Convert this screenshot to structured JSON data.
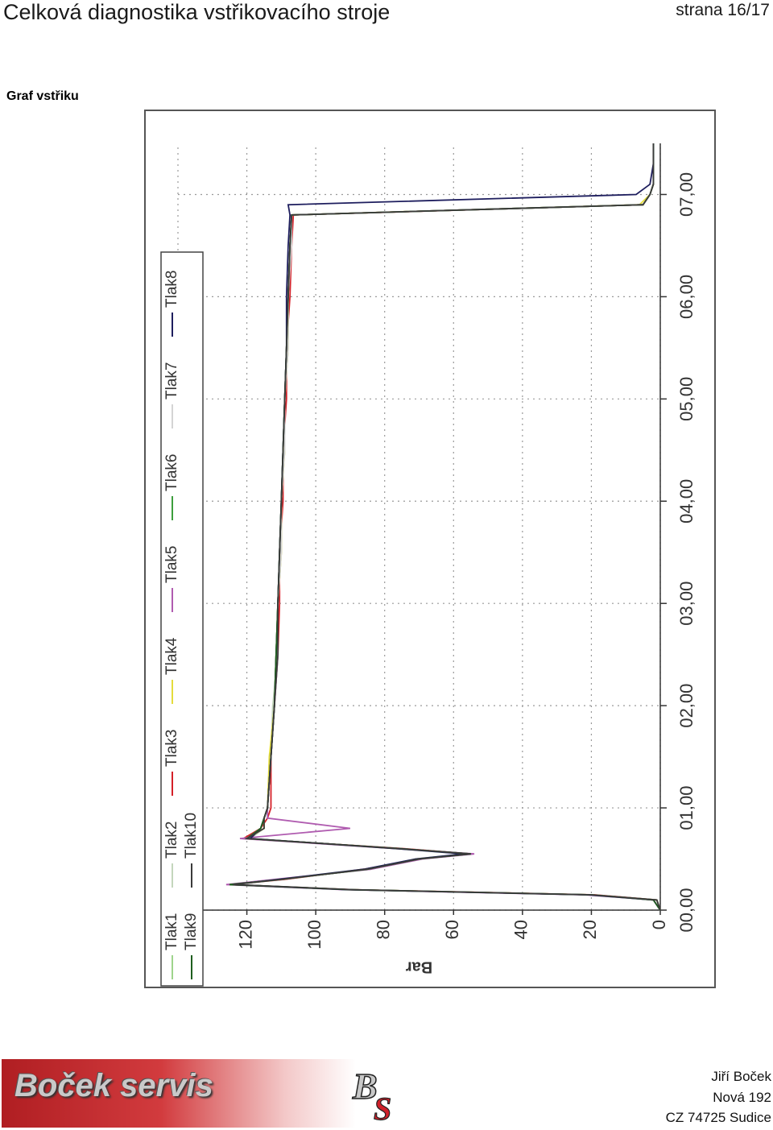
{
  "header": {
    "title": "Celková diagnostika vstřikovacího stroje",
    "page": "strana 16/17"
  },
  "section_title": "Graf vstřiku",
  "chart_data": {
    "type": "line",
    "ylabel": "Bar",
    "x": [
      0,
      0.1,
      0.15,
      0.2,
      0.25,
      0.3,
      0.4,
      0.5,
      0.55,
      0.6,
      0.7,
      0.8,
      0.9,
      1,
      1.5,
      2,
      2.5,
      3,
      3.5,
      4,
      4.5,
      5,
      5.5,
      6,
      6.5,
      6.8,
      6.9,
      7,
      7.1,
      7.3,
      7.5
    ],
    "xlim": [
      0,
      7.5
    ],
    "xticks": [
      {
        "value": 0,
        "label": "00,00"
      },
      {
        "value": 1,
        "label": "01,00"
      },
      {
        "value": 2,
        "label": "02,00"
      },
      {
        "value": 3,
        "label": "03,00"
      },
      {
        "value": 4,
        "label": "04,00"
      },
      {
        "value": 5,
        "label": "05,00"
      },
      {
        "value": 6,
        "label": "06,00"
      },
      {
        "value": 7,
        "label": "07,00"
      }
    ],
    "ylim": [
      0,
      140
    ],
    "yticks": [
      0,
      20,
      40,
      60,
      80,
      100,
      120,
      140
    ],
    "grid": true,
    "series": [
      {
        "name": "Tlak1",
        "color": "#9ed48c",
        "values": [
          0,
          2,
          20,
          90,
          125,
          110,
          85,
          70,
          55,
          75,
          120,
          116,
          115,
          114,
          113,
          112,
          111.5,
          111,
          110.5,
          110,
          109.5,
          109,
          108.5,
          108,
          107.5,
          107,
          5,
          3,
          2,
          2,
          2
        ]
      },
      {
        "name": "Tlak2",
        "color": "#c4d6bc",
        "values": [
          0,
          2,
          21,
          91,
          124,
          111,
          84,
          71,
          56,
          76,
          119,
          115,
          115,
          114,
          113,
          112.5,
          111,
          111,
          110,
          110,
          109,
          109,
          108,
          108,
          107,
          107,
          5,
          3,
          2,
          2,
          2
        ]
      },
      {
        "name": "Tlak3",
        "color": "#d42028",
        "values": [
          0,
          1,
          19,
          89,
          125,
          109,
          86,
          70,
          55,
          74,
          121,
          116,
          114,
          113,
          113,
          112,
          111,
          110.5,
          110.5,
          109.5,
          109.5,
          108.5,
          108.5,
          107.5,
          107,
          106.5,
          5,
          3,
          2,
          2,
          2
        ]
      },
      {
        "name": "Tlak4",
        "color": "#e4dc3c",
        "values": [
          0,
          2,
          20,
          90,
          124,
          110,
          85,
          71,
          56,
          75,
          120,
          115,
          115,
          114,
          113.5,
          112,
          111.5,
          111,
          110,
          110,
          109,
          109,
          108,
          108,
          107.5,
          107,
          6,
          3,
          2,
          2,
          2
        ]
      },
      {
        "name": "Tlak5",
        "color": "#b05cb0",
        "values": [
          0,
          2,
          22,
          92,
          126,
          112,
          84,
          69,
          54,
          76,
          122,
          90,
          114,
          114,
          113,
          112,
          111,
          111,
          110.5,
          110,
          109.5,
          109,
          108.5,
          108,
          107.5,
          107,
          5,
          3,
          2,
          2,
          2
        ]
      },
      {
        "name": "Tlak6",
        "color": "#3d9e3d",
        "values": [
          0,
          1,
          20,
          90,
          125,
          110,
          85,
          70,
          55,
          75,
          120,
          116,
          115,
          114,
          113,
          112,
          111.5,
          111,
          110.5,
          110,
          109.5,
          109,
          108.5,
          108,
          107.5,
          107,
          5,
          3,
          2,
          2,
          2
        ]
      },
      {
        "name": "Tlak7",
        "color": "#d4d4d4",
        "values": [
          0,
          2,
          20,
          90,
          124,
          110,
          85,
          70,
          56,
          75,
          120,
          116,
          115,
          114,
          113,
          112,
          111,
          111,
          110,
          110,
          109,
          109,
          108,
          108,
          107,
          107,
          5,
          3,
          2,
          2,
          2
        ]
      },
      {
        "name": "Tlak8",
        "color": "#1e1e5e",
        "values": [
          0,
          2,
          21,
          91,
          124,
          111,
          86,
          71,
          57,
          76,
          119,
          116,
          115,
          114,
          113,
          112,
          111.5,
          111,
          110.5,
          110,
          109.5,
          109,
          108.5,
          108.5,
          108,
          107.5,
          108,
          7,
          3,
          2,
          2
        ]
      },
      {
        "name": "Tlak9",
        "color": "#1f5e1f",
        "values": [
          0,
          2,
          20,
          90,
          125,
          110,
          85,
          70,
          55,
          75,
          120,
          116,
          115,
          114,
          113,
          112,
          111.5,
          111,
          110.5,
          110,
          109.5,
          109,
          108.5,
          108,
          107.5,
          107,
          5,
          3,
          2,
          2,
          2
        ]
      },
      {
        "name": "Tlak10",
        "color": "#3a3a3a",
        "values": [
          0,
          1,
          20,
          89,
          124,
          110,
          85,
          70,
          55,
          75,
          120,
          115,
          115,
          114,
          113,
          112,
          111,
          111,
          110.5,
          110,
          109.5,
          109,
          108.5,
          108,
          107.5,
          107,
          5,
          3,
          2,
          2,
          2
        ]
      }
    ]
  },
  "footer": {
    "brand": "Boček servis",
    "logo": "BS",
    "address": [
      "Jiří Boček",
      "Nová 192",
      "CZ 74725 Sudice"
    ]
  }
}
